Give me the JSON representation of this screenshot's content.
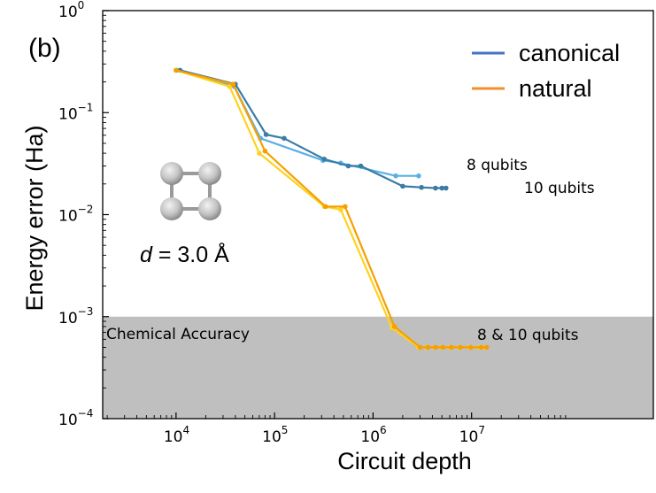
{
  "chart_data": {
    "type": "line",
    "panel_label": "(b)",
    "xlabel": "Circuit depth",
    "ylabel": "Energy error (Ha)",
    "xscale": "log",
    "yscale": "log",
    "xlim": [
      1800,
      700000000
    ],
    "ylim": [
      0.0001,
      1
    ],
    "x_ticks": [
      {
        "base": "10",
        "exp": "4",
        "value": 10000
      },
      {
        "base": "10",
        "exp": "5",
        "value": 100000
      },
      {
        "base": "10",
        "exp": "6",
        "value": 1000000
      },
      {
        "base": "10",
        "exp": "7",
        "value": 10000000
      }
    ],
    "y_ticks": [
      {
        "base": "10",
        "exp": "0",
        "value": 1
      },
      {
        "base": "10",
        "exp": "−1",
        "value": 0.1
      },
      {
        "base": "10",
        "exp": "−2",
        "value": 0.01
      },
      {
        "base": "10",
        "exp": "−3",
        "value": 0.001
      },
      {
        "base": "10",
        "exp": "−4",
        "value": 0.0001
      }
    ],
    "legend": [
      {
        "label": "canonical",
        "color": "#4472c4"
      },
      {
        "label": "natural",
        "color": "#f28e2b"
      }
    ],
    "chemical_accuracy": {
      "label": "Chemical Accuracy",
      "threshold": 0.001,
      "color": "#bfbfbf"
    },
    "annotations": {
      "q8": "8 qubits",
      "q10": "10 qubits",
      "q8_10": "8 & 10 qubits"
    },
    "molecule_label": {
      "var": "d",
      "rest": " = 3.0 Å"
    },
    "series": [
      {
        "name": "canonical 8 qubits",
        "color": "#5ab0e6",
        "x": [
          10200,
          39000,
          72000,
          310000,
          470000,
          1700000,
          2900000
        ],
        "y": [
          0.26,
          0.18,
          0.056,
          0.034,
          0.032,
          0.024,
          0.024
        ]
      },
      {
        "name": "canonical 10 qubits",
        "color": "#3a7ca5",
        "x": [
          11000,
          40000,
          82000,
          125000,
          320000,
          560000,
          750000,
          2000000,
          3100000,
          4300000,
          5000000,
          5500000
        ],
        "y": [
          0.26,
          0.19,
          0.061,
          0.056,
          0.035,
          0.03,
          0.03,
          0.019,
          0.0185,
          0.0182,
          0.0182,
          0.0182
        ]
      },
      {
        "name": "natural 8 qubits",
        "color": "#ffd21f",
        "x": [
          10000,
          35000,
          70000,
          320000,
          470000,
          1550000,
          2900000,
          3500000,
          4200000,
          5000000,
          6000000,
          7500000,
          9500000,
          12000000,
          14000000
        ],
        "y": [
          0.26,
          0.18,
          0.04,
          0.012,
          0.0112,
          0.00078,
          0.0005,
          0.0005,
          0.0005,
          0.0005,
          0.0005,
          0.0005,
          0.0005,
          0.0005,
          0.0005
        ]
      },
      {
        "name": "natural 10 qubits",
        "color": "#f5a000",
        "x": [
          10000,
          38000,
          80000,
          330000,
          520000,
          1650000,
          3000000,
          3600000,
          4300000,
          5100000,
          6200000,
          7700000,
          9800000,
          12500000,
          14200000
        ],
        "y": [
          0.26,
          0.19,
          0.042,
          0.012,
          0.012,
          0.0008,
          0.0005,
          0.0005,
          0.0005,
          0.0005,
          0.0005,
          0.0005,
          0.0005,
          0.0005,
          0.0005
        ]
      }
    ]
  }
}
